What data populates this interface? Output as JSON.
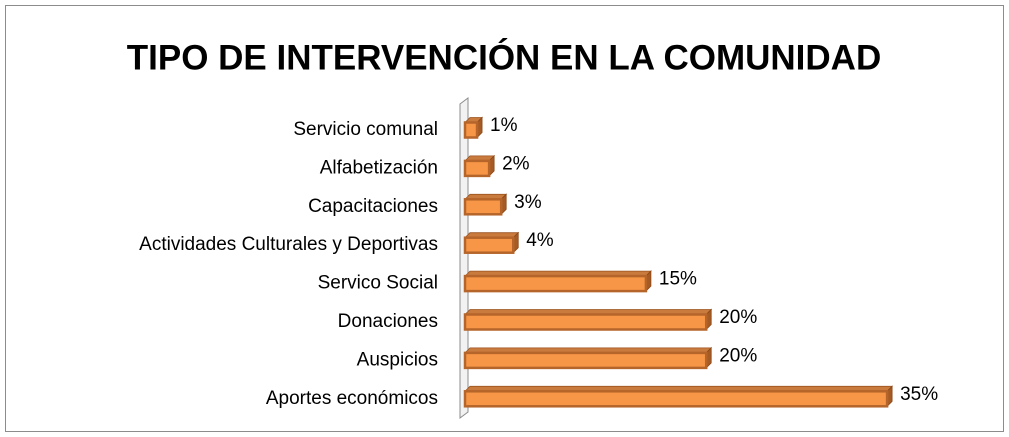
{
  "chart_data": {
    "type": "bar",
    "orientation": "horizontal",
    "title": "TIPO DE INTERVENCIÓN EN LA COMUNIDAD",
    "categories": [
      "Servicio comunal",
      "Alfabetización",
      "Capacitaciones",
      "Actividades Culturales y Deportivas",
      "Servico Social",
      "Donaciones",
      "Auspicios",
      "Aportes económicos"
    ],
    "values": [
      1,
      2,
      3,
      4,
      15,
      20,
      20,
      35
    ],
    "value_labels": [
      "1%",
      "2%",
      "3%",
      "4%",
      "15%",
      "20%",
      "20%",
      "35%"
    ],
    "color": "#f79646"
  }
}
